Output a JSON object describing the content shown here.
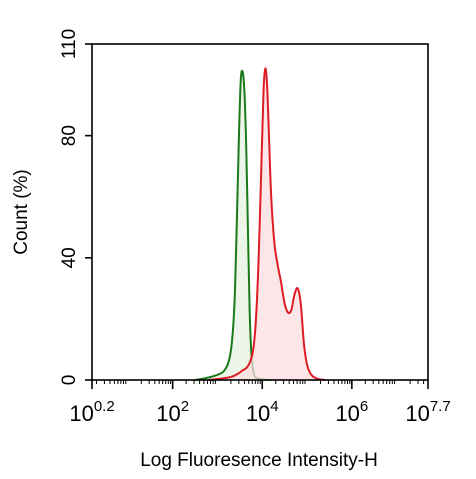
{
  "chart_data": {
    "type": "area",
    "title": "",
    "xlabel": "Log Fluoresence Intensity-H",
    "ylabel": "Count  (%)",
    "x_scale": "log10",
    "xlim_log10": [
      0.2,
      7.7
    ],
    "ylim": [
      0,
      110
    ],
    "x_ticks": [
      {
        "base": "10",
        "exp": "0.2",
        "log10": 0.2
      },
      {
        "base": "10",
        "exp": "2",
        "log10": 2
      },
      {
        "base": "10",
        "exp": "4",
        "log10": 4
      },
      {
        "base": "10",
        "exp": "6",
        "log10": 6
      },
      {
        "base": "10",
        "exp": "7.7",
        "log10": 7.7
      }
    ],
    "y_ticks": [
      "0",
      "40",
      "80",
      "110"
    ],
    "y_tick_values": [
      0,
      40,
      80,
      110
    ],
    "grid": false,
    "legend": "none",
    "series": [
      {
        "color": "#1a7a1a",
        "fill": "#e6f2e0",
        "points_log10_x": [
          2.5,
          2.7,
          2.9,
          3.05,
          3.15,
          3.25,
          3.32,
          3.38,
          3.43,
          3.48,
          3.52,
          3.56,
          3.6,
          3.64,
          3.68,
          3.72,
          3.76,
          3.8,
          3.84,
          3.9,
          4.0,
          4.2
        ],
        "values": [
          0,
          0.5,
          1.2,
          2,
          3,
          6,
          12,
          25,
          50,
          80,
          98,
          101,
          95,
          78,
          50,
          22,
          8,
          3,
          1,
          0.5,
          0.2,
          0
        ]
      },
      {
        "color": "#dd1c24",
        "fill": "#fcdde0",
        "points_log10_x": [
          2.8,
          3.1,
          3.3,
          3.45,
          3.55,
          3.65,
          3.73,
          3.8,
          3.86,
          3.92,
          3.98,
          4.03,
          4.07,
          4.11,
          4.15,
          4.2,
          4.27,
          4.34,
          4.42,
          4.5,
          4.58,
          4.65,
          4.72,
          4.79,
          4.86,
          4.93,
          5.0,
          5.08,
          5.15,
          5.25,
          5.4
        ],
        "values": [
          0,
          0.5,
          1,
          2,
          3,
          4,
          6,
          10,
          20,
          40,
          70,
          95,
          102,
          96,
          80,
          60,
          45,
          38,
          32,
          25,
          22,
          23,
          28,
          30,
          25,
          12,
          5,
          2,
          1,
          0.3,
          0
        ]
      }
    ]
  }
}
